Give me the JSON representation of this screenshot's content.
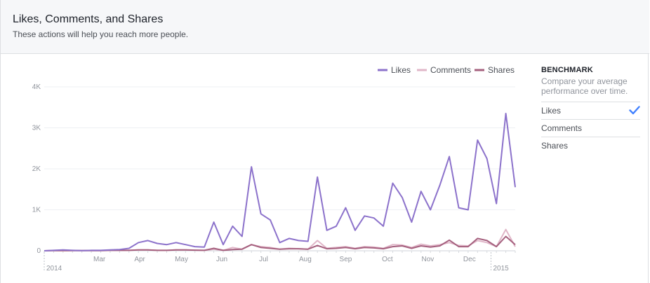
{
  "header": {
    "title": "Likes, Comments, and Shares",
    "subtitle": "These actions will help you reach more people."
  },
  "legend": [
    {
      "label": "Likes",
      "color": "#8c72cb"
    },
    {
      "label": "Comments",
      "color": "#e0b6c8"
    },
    {
      "label": "Shares",
      "color": "#a5607e"
    }
  ],
  "benchmark": {
    "title": "BENCHMARK",
    "description": "Compare your average performance over time.",
    "items": [
      {
        "label": "Likes",
        "selected": true
      },
      {
        "label": "Comments",
        "selected": false
      },
      {
        "label": "Shares",
        "selected": false
      }
    ],
    "check_icon": "checkmark-icon",
    "check_color": "#4080ff"
  },
  "chart_data": {
    "type": "line",
    "y_ticks": [
      "0",
      "1K",
      "2K",
      "3K",
      "4K"
    ],
    "ylim": [
      0,
      4000
    ],
    "x_month_labels": [
      "Mar",
      "Apr",
      "May",
      "Jun",
      "Jul",
      "Aug",
      "Sep",
      "Oct",
      "Nov",
      "Dec"
    ],
    "x_year_labels": [
      "2014",
      "2015"
    ],
    "x_range": [
      "2014-02-03",
      "2015-01-19"
    ],
    "x": [
      "2014-02-03",
      "2014-02-10",
      "2014-02-17",
      "2014-02-24",
      "2014-03-03",
      "2014-03-10",
      "2014-03-17",
      "2014-03-24",
      "2014-03-31",
      "2014-04-07",
      "2014-04-14",
      "2014-04-21",
      "2014-04-28",
      "2014-05-05",
      "2014-05-12",
      "2014-05-19",
      "2014-05-26",
      "2014-06-02",
      "2014-06-09",
      "2014-06-16",
      "2014-06-23",
      "2014-06-30",
      "2014-07-07",
      "2014-07-14",
      "2014-07-21",
      "2014-07-28",
      "2014-08-04",
      "2014-08-11",
      "2014-08-18",
      "2014-08-25",
      "2014-09-01",
      "2014-09-08",
      "2014-09-15",
      "2014-09-22",
      "2014-09-29",
      "2014-10-06",
      "2014-10-13",
      "2014-10-20",
      "2014-10-27",
      "2014-11-03",
      "2014-11-10",
      "2014-11-17",
      "2014-11-24",
      "2014-12-01",
      "2014-12-08",
      "2014-12-15",
      "2014-12-22",
      "2014-12-29",
      "2015-01-05",
      "2015-01-12",
      "2015-01-19"
    ],
    "series": [
      {
        "name": "Likes",
        "color": "#8c72cb",
        "values": [
          0,
          10,
          20,
          10,
          5,
          10,
          10,
          20,
          30,
          60,
          200,
          250,
          180,
          150,
          200,
          150,
          100,
          90,
          700,
          150,
          600,
          350,
          2050,
          900,
          750,
          200,
          300,
          250,
          230,
          1800,
          500,
          600,
          1050,
          500,
          850,
          800,
          600,
          1650,
          1300,
          700,
          1450,
          1000,
          1600,
          2300,
          1050,
          1000,
          2700,
          2250,
          1150,
          3350,
          1550
        ]
      },
      {
        "name": "Comments",
        "color": "#e0b6c8",
        "values": [
          0,
          5,
          5,
          5,
          5,
          5,
          5,
          10,
          10,
          10,
          20,
          20,
          10,
          10,
          20,
          20,
          15,
          10,
          40,
          10,
          80,
          40,
          150,
          100,
          80,
          40,
          60,
          50,
          40,
          250,
          60,
          80,
          100,
          60,
          100,
          90,
          60,
          150,
          140,
          80,
          160,
          120,
          150,
          200,
          130,
          120,
          250,
          200,
          100,
          520,
          100
        ]
      },
      {
        "name": "Shares",
        "color": "#a5607e",
        "values": [
          0,
          5,
          5,
          5,
          5,
          5,
          5,
          10,
          10,
          10,
          20,
          20,
          10,
          10,
          20,
          20,
          15,
          10,
          60,
          10,
          30,
          40,
          150,
          80,
          60,
          40,
          50,
          50,
          40,
          130,
          50,
          60,
          80,
          50,
          80,
          70,
          50,
          100,
          120,
          60,
          120,
          90,
          120,
          260,
          100,
          100,
          300,
          250,
          100,
          350,
          150
        ]
      }
    ]
  }
}
